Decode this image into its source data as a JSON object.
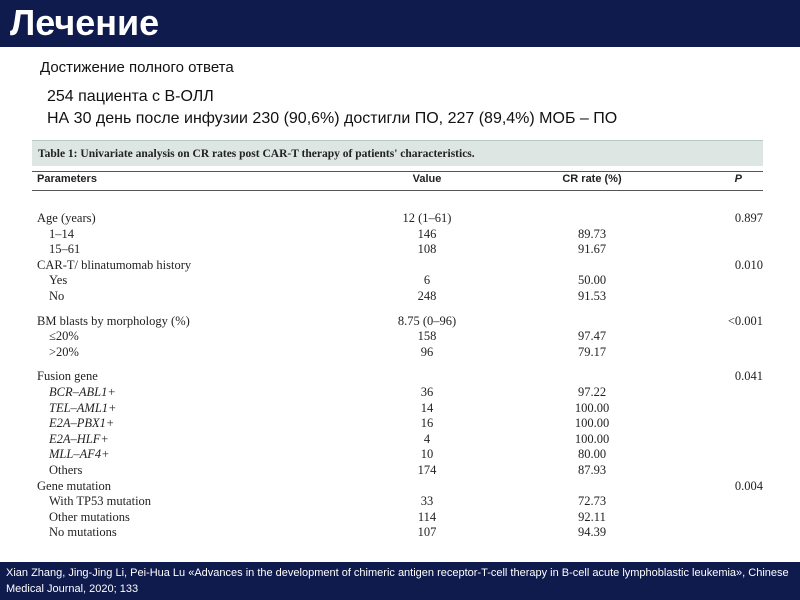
{
  "header": {
    "title": "Лечение"
  },
  "subtitle": "Достижение полного ответа",
  "notes": [
    "254 пациента с В-ОЛЛ",
    "НА 30 день после инфузии 230 (90,6%) достигли ПО, 227 (89,4%) МОБ – ПО"
  ],
  "table": {
    "caption": "Table 1: Univariate analysis on CR rates post CAR-T therapy of patients' characteristics.",
    "columns": [
      "Parameters",
      "Value",
      "CR rate (%)",
      "P"
    ],
    "rows": [
      [
        "Age (years)",
        "12 (1–61)",
        "",
        "0.897"
      ],
      [
        "1–14",
        "146",
        "89.73",
        ""
      ],
      [
        "15–61",
        "108",
        "91.67",
        ""
      ],
      [
        "CAR-T/ blinatumomab history",
        "",
        "",
        "0.010"
      ],
      [
        "Yes",
        "6",
        "50.00",
        ""
      ],
      [
        "No",
        "248",
        "91.53",
        ""
      ],
      [
        "BM blasts by morphology (%)",
        "8.75 (0–96)",
        "",
        "<0.001"
      ],
      [
        "≤20%",
        "158",
        "97.47",
        ""
      ],
      [
        ">20%",
        "96",
        "79.17",
        ""
      ],
      [
        "Fusion gene",
        "",
        "",
        "0.041"
      ],
      [
        "BCR–ABL1+",
        "36",
        "97.22",
        ""
      ],
      [
        "TEL–AML1+",
        "14",
        "100.00",
        ""
      ],
      [
        "E2A–PBX1+",
        "16",
        "100.00",
        ""
      ],
      [
        "E2A–HLF+",
        "4",
        "100.00",
        ""
      ],
      [
        "MLL–AF4+",
        "10",
        "80.00",
        ""
      ],
      [
        "Others",
        "174",
        "87.93",
        ""
      ],
      [
        "Gene mutation",
        "",
        "",
        "0.004"
      ],
      [
        "With TP53 mutation",
        "33",
        "72.73",
        ""
      ],
      [
        "Other mutations",
        "114",
        "92.11",
        ""
      ],
      [
        "No mutations",
        "107",
        "94.39",
        ""
      ]
    ]
  },
  "footer": "Xian Zhang, Jing-Jing Li, Pei-Hua Lu «Advances in the development of chimeric antigen receptor-T-cell therapy in B-cell acute lymphoblastic leukemia», Chinese Medical Journal, 2020; 133"
}
